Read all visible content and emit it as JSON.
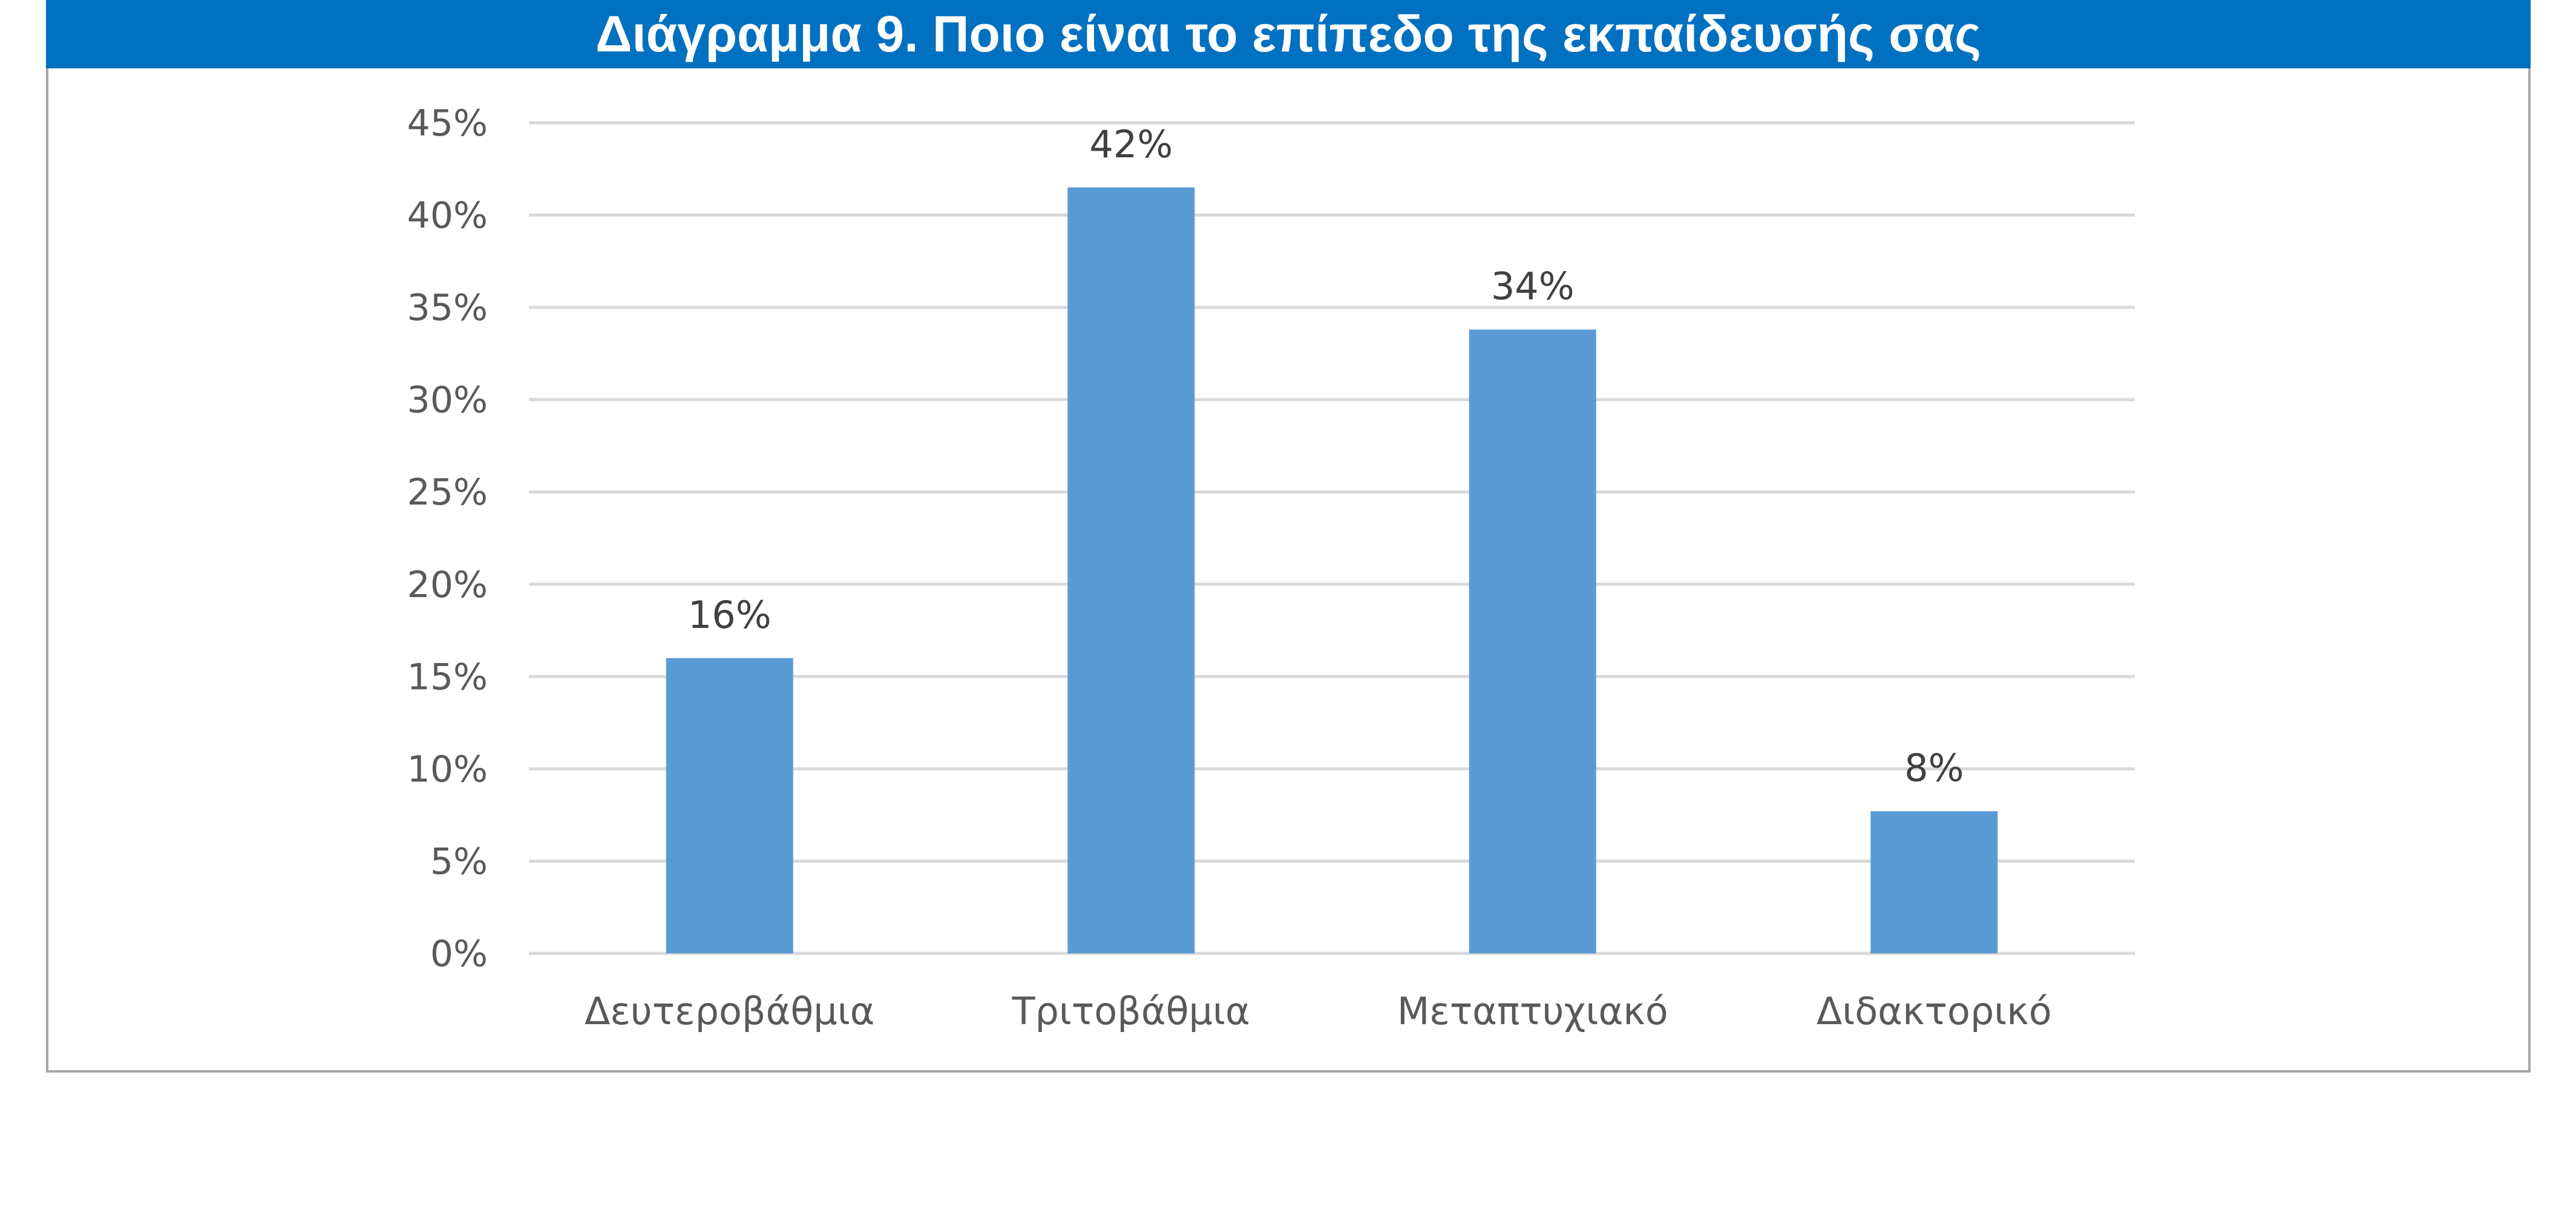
{
  "chart_data": {
    "type": "bar",
    "title": "Διάγραμμα 9. Ποιο είναι το επίπεδο της εκπαίδευσής σας",
    "categories": [
      "Δευτεροβάθμια",
      "Τριτοβάθμια",
      "Μεταπτυχιακό",
      "Διδακτορικό"
    ],
    "values": [
      16,
      41.5,
      33.8,
      7.7
    ],
    "data_labels": [
      "16%",
      "42%",
      "34%",
      "8%"
    ],
    "ylim": [
      0,
      45
    ],
    "yticks": [
      0,
      5,
      10,
      15,
      20,
      25,
      30,
      35,
      40,
      45
    ],
    "ytick_labels": [
      "0%",
      "5%",
      "10%",
      "15%",
      "20%",
      "25%",
      "30%",
      "35%",
      "40%",
      "45%"
    ],
    "xlabel": "",
    "ylabel": "",
    "grid": true,
    "legend": "none",
    "colors": {
      "bar": "#5b9bd5",
      "title_background": "#0070c0",
      "title_text": "#ffffff",
      "gridline": "#d9d9d9",
      "frame": "#a6a6a6"
    }
  }
}
